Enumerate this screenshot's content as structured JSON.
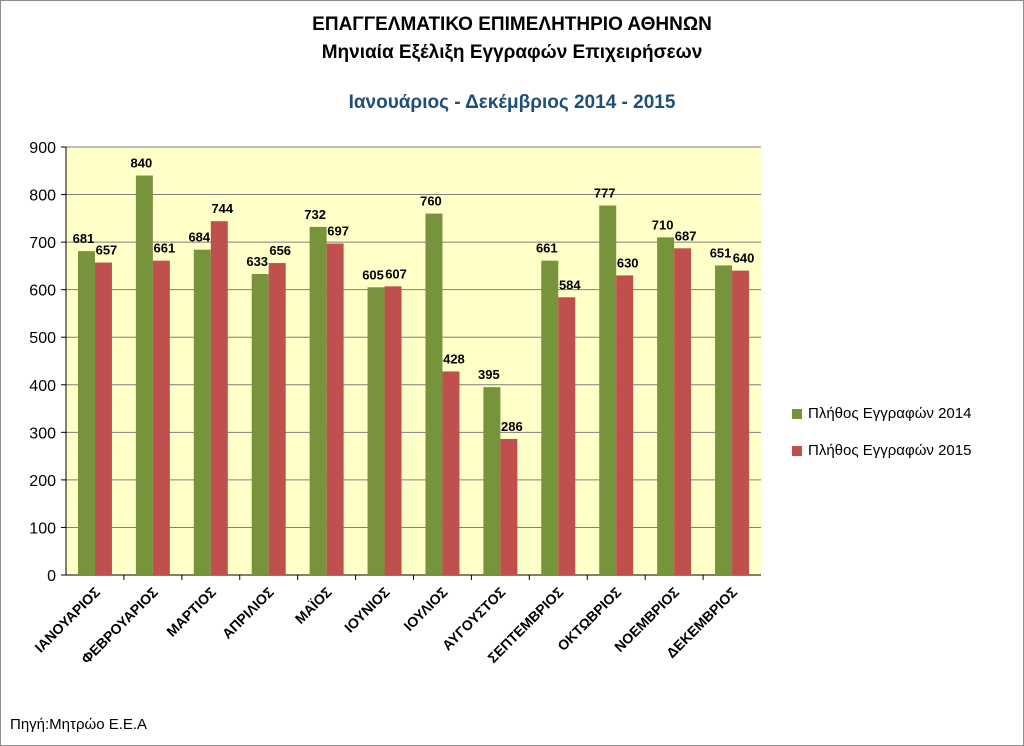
{
  "header": {
    "title": "ΕΠΑΓΓΕΛΜΑΤΙΚΟ ΕΠΙΜΕΛΗΤΗΡΙΟ ΑΘΗΝΩΝ",
    "subtitle": "Μηνιαία Εξέλιξη Εγγραφών Επιχειρήσεων",
    "period": "Ιανουάριος - Δεκέμβριος 2014 - 2015"
  },
  "source": "Πηγή:Μητρώο Ε.Ε.Α",
  "colors": {
    "plot_background": "#ffffc8",
    "series_2014": "#77933c",
    "series_2015": "#c0504d",
    "gridline": "#7f7f7f",
    "period_title": "#1f4e79"
  },
  "chart_data": {
    "type": "bar",
    "title": "ΕΠΑΓΓΕΛΜΑΤΙΚΟ ΕΠΙΜΕΛΗΤΗΡΙΟ ΑΘΗΝΩΝ",
    "categories": [
      "ΙΑΝΟΥΑΡΙΟΣ",
      "ΦΕΒΡΟΥΑΡΙΟΣ",
      "ΜΑΡΤΙΟΣ",
      "ΑΠΡΙΛΙΟΣ",
      "ΜΑΪΟΣ",
      "ΙΟΥΝΙΟΣ",
      "ΙΟΥΛΙΟΣ",
      "ΑΥΓΟΥΣΤΟΣ",
      "ΣΕΠΤΕΜΒΡΙΟΣ",
      "ΟΚΤΩΒΡΙΟΣ",
      "ΝΟΕΜΒΡΙΟΣ",
      "ΔΕΚΕΜΒΡΙΟΣ"
    ],
    "series": [
      {
        "name": "Πλήθος Εγγραφών 2014",
        "values": [
          681,
          840,
          684,
          633,
          732,
          605,
          760,
          395,
          661,
          777,
          710,
          651
        ]
      },
      {
        "name": "Πλήθος Εγγραφών 2015",
        "values": [
          657,
          661,
          744,
          656,
          697,
          607,
          428,
          286,
          584,
          630,
          687,
          640
        ]
      }
    ],
    "ylim": [
      0,
      900
    ],
    "yticks": [
      0,
      100,
      200,
      300,
      400,
      500,
      600,
      700,
      800,
      900
    ],
    "grid": true,
    "legend_position": "right",
    "data_labels": true
  }
}
